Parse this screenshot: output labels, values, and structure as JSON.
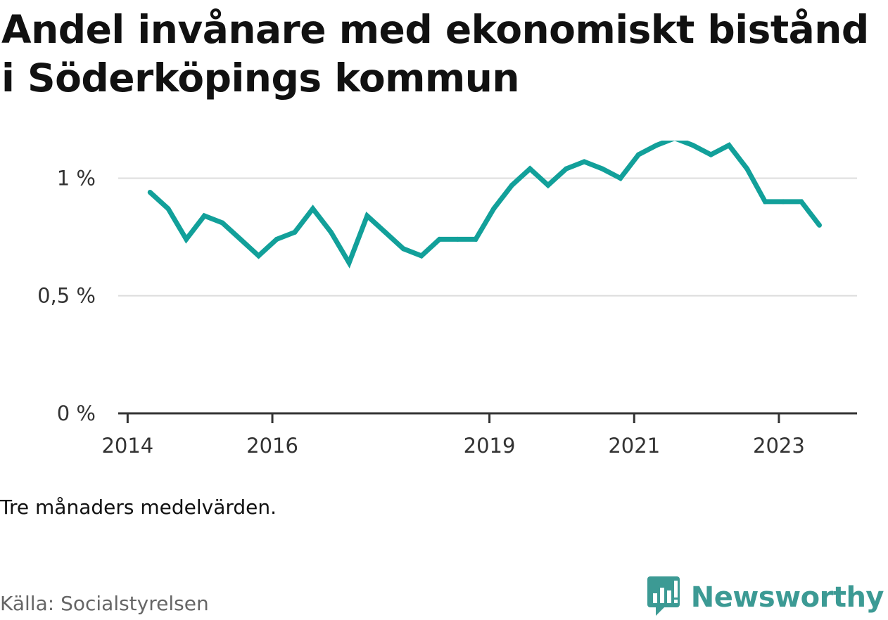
{
  "title": "Andel invånare med ekonomiskt bistånd i Söderköpings kommun",
  "note": "Tre månaders medelvärden.",
  "source": "Källa: Socialstyrelsen",
  "brand": {
    "name": "Newsworthy",
    "icon": "newsworthy-logo-icon",
    "color": "#3c9a94"
  },
  "colors": {
    "line": "#12a09a",
    "grid": "#dddddd",
    "axis": "#333333"
  },
  "chart_data": {
    "type": "line",
    "title": "Andel invånare med ekonomiskt bistånd i Söderköpings kommun",
    "xlabel": "",
    "ylabel": "",
    "grid": true,
    "ylim": [
      0,
      1.1
    ],
    "yticks": [
      {
        "value": 0,
        "label": "0 %"
      },
      {
        "value": 0.5,
        "label": "0,5 %"
      },
      {
        "value": 1,
        "label": "1 %"
      }
    ],
    "xticks": [
      {
        "value": 2014.0,
        "label": "2014"
      },
      {
        "value": 2016.0,
        "label": "2016"
      },
      {
        "value": 2019.0,
        "label": "2019"
      },
      {
        "value": 2021.0,
        "label": "2021"
      },
      {
        "value": 2023.0,
        "label": "2023"
      }
    ],
    "xlim": [
      2013.87,
      2024.08
    ],
    "series": [
      {
        "name": "",
        "x": [
          2014.31,
          2014.56,
          2014.81,
          2015.06,
          2015.31,
          2015.56,
          2015.81,
          2016.06,
          2016.31,
          2016.56,
          2016.81,
          2017.06,
          2017.31,
          2017.56,
          2017.81,
          2018.06,
          2018.31,
          2018.56,
          2018.81,
          2019.06,
          2019.31,
          2019.56,
          2019.81,
          2020.06,
          2020.31,
          2020.56,
          2020.81,
          2021.06,
          2021.31,
          2021.56,
          2021.81,
          2022.06,
          2022.31,
          2022.56,
          2022.81,
          2023.06,
          2023.31,
          2023.56
        ],
        "values": [
          0.94,
          0.87,
          0.74,
          0.84,
          0.81,
          0.74,
          0.67,
          0.74,
          0.77,
          0.87,
          0.77,
          0.64,
          0.84,
          0.77,
          0.7,
          0.67,
          0.74,
          0.74,
          0.74,
          0.87,
          0.97,
          1.04,
          0.97,
          1.04,
          1.07,
          1.04,
          1.0,
          1.1,
          1.14,
          1.17,
          1.14,
          1.1,
          1.14,
          1.04,
          0.9,
          0.9,
          0.9,
          0.8
        ]
      }
    ]
  }
}
